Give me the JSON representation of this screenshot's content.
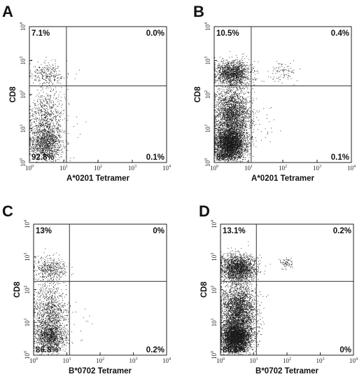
{
  "chart_data": [
    {
      "type": "scatter",
      "panel": "A",
      "xlabel": "A*0201 Tetramer",
      "ylabel": "CD8",
      "xscale": "log",
      "yscale": "log",
      "xlim": [
        1,
        10000
      ],
      "ylim": [
        1,
        10000
      ],
      "x_ticks": [
        "10",
        "10",
        "10",
        "10",
        "10"
      ],
      "x_tick_exps": [
        "0",
        "1",
        "2",
        "3",
        "4"
      ],
      "y_ticks": [
        "10",
        "10",
        "10",
        "10",
        "10"
      ],
      "y_tick_exps": [
        "0",
        "1",
        "2",
        "3",
        "4"
      ],
      "gate": {
        "x": 12,
        "y": 180
      },
      "quadrants": {
        "upper_left": "7.1%",
        "upper_right": "0.0%",
        "lower_left": "92.8%",
        "lower_right": "0.1%"
      },
      "populations": [
        {
          "x_range": [
            1,
            9
          ],
          "y_range": [
            1.2,
            12
          ],
          "n": 1100,
          "quadrant": "lower-left"
        },
        {
          "x_range": [
            1,
            10
          ],
          "y_range": [
            3,
            150
          ],
          "n": 700,
          "quadrant": "lower-left"
        },
        {
          "x_range": [
            1,
            10
          ],
          "y_range": [
            180,
            900
          ],
          "n": 260,
          "quadrant": "upper-left"
        },
        {
          "x_range": [
            12,
            60
          ],
          "y_range": [
            3,
            30
          ],
          "n": 6,
          "quadrant": "lower-right"
        }
      ]
    },
    {
      "type": "scatter",
      "panel": "B",
      "xlabel": "A*0201 Tetramer",
      "ylabel": "CD8",
      "xscale": "log",
      "yscale": "log",
      "xlim": [
        1,
        10000
      ],
      "ylim": [
        1,
        10000
      ],
      "x_ticks": [
        "10",
        "10",
        "10",
        "10",
        "10"
      ],
      "x_tick_exps": [
        "0",
        "1",
        "2",
        "3",
        "4"
      ],
      "y_ticks": [
        "10",
        "10",
        "10",
        "10",
        "10"
      ],
      "y_tick_exps": [
        "0",
        "1",
        "2",
        "3",
        "4"
      ],
      "gate": {
        "x": 12,
        "y": 180
      },
      "quadrants": {
        "upper_left": "10.5%",
        "upper_right": "0.4%",
        "lower_left": "89%",
        "lower_right": "0.1%"
      },
      "populations": [
        {
          "x_range": [
            1,
            8
          ],
          "y_range": [
            1.2,
            10
          ],
          "n": 3200,
          "quadrant": "lower-left"
        },
        {
          "x_range": [
            1,
            11
          ],
          "y_range": [
            3,
            170
          ],
          "n": 2600,
          "quadrant": "lower-left"
        },
        {
          "x_range": [
            1,
            11
          ],
          "y_range": [
            180,
            1000
          ],
          "n": 1400,
          "quadrant": "upper-left"
        },
        {
          "x_range": [
            40,
            250
          ],
          "y_range": [
            250,
            900
          ],
          "n": 90,
          "quadrant": "upper-right"
        },
        {
          "x_range": [
            12,
            80
          ],
          "y_range": [
            2,
            60
          ],
          "n": 20,
          "quadrant": "lower-right"
        }
      ]
    },
    {
      "type": "scatter",
      "panel": "C",
      "xlabel": "B*0702 Tetramer",
      "ylabel": "CD8",
      "xscale": "log",
      "yscale": "log",
      "xlim": [
        1,
        10000
      ],
      "ylim": [
        1,
        10000
      ],
      "x_ticks": [
        "10",
        "10",
        "10",
        "10",
        "10"
      ],
      "x_tick_exps": [
        "0",
        "1",
        "2",
        "3",
        "4"
      ],
      "y_ticks": [
        "10",
        "10",
        "10",
        "10",
        "10"
      ],
      "y_tick_exps": [
        "0",
        "1",
        "2",
        "3",
        "4"
      ],
      "gate": {
        "x": 12,
        "y": 180
      },
      "quadrants": {
        "upper_left": "13%",
        "upper_right": "0%",
        "lower_left": "86.8%",
        "lower_right": "0.2%"
      },
      "populations": [
        {
          "x_range": [
            1,
            9
          ],
          "y_range": [
            1.2,
            12
          ],
          "n": 1200,
          "quadrant": "lower-left"
        },
        {
          "x_range": [
            1,
            10
          ],
          "y_range": [
            3,
            160
          ],
          "n": 900,
          "quadrant": "lower-left"
        },
        {
          "x_range": [
            1,
            10
          ],
          "y_range": [
            180,
            1000
          ],
          "n": 420,
          "quadrant": "upper-left"
        },
        {
          "x_range": [
            12,
            80
          ],
          "y_range": [
            3,
            40
          ],
          "n": 10,
          "quadrant": "lower-right"
        }
      ]
    },
    {
      "type": "scatter",
      "panel": "D",
      "xlabel": "B*0702 Tetramer",
      "ylabel": "CD8",
      "xscale": "log",
      "yscale": "log",
      "xlim": [
        1,
        10000
      ],
      "ylim": [
        1,
        10000
      ],
      "x_ticks": [
        "10",
        "10",
        "10",
        "10",
        "10"
      ],
      "x_tick_exps": [
        "0",
        "1",
        "2",
        "3",
        "4"
      ],
      "y_ticks": [
        "10",
        "10",
        "10",
        "10",
        "10"
      ],
      "y_tick_exps": [
        "0",
        "1",
        "2",
        "3",
        "4"
      ],
      "gate": {
        "x": 12,
        "y": 180
      },
      "quadrants": {
        "upper_left": "13.1%",
        "upper_right": "0.2%",
        "lower_left": "86.6%",
        "lower_right": "0%"
      },
      "populations": [
        {
          "x_range": [
            1,
            8
          ],
          "y_range": [
            1.2,
            10
          ],
          "n": 3400,
          "quadrant": "lower-left"
        },
        {
          "x_range": [
            1,
            11
          ],
          "y_range": [
            3,
            170
          ],
          "n": 2800,
          "quadrant": "lower-left"
        },
        {
          "x_range": [
            1,
            11
          ],
          "y_range": [
            180,
            1200
          ],
          "n": 1900,
          "quadrant": "upper-left"
        },
        {
          "x_range": [
            50,
            160
          ],
          "y_range": [
            450,
            900
          ],
          "n": 70,
          "quadrant": "upper-right"
        }
      ]
    }
  ]
}
